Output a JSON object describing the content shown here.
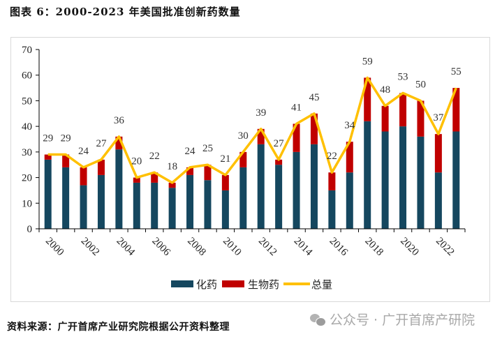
{
  "header": {
    "title": "图表 6：2000-2023 年美国批准创新药数量"
  },
  "footer": {
    "source": "资料来源：广开首席产业研究院根据公开资料整理",
    "watermark": "公众号 · 广开首席产研院",
    "watermark_icon": "wechat-icon"
  },
  "chart_data": {
    "type": "bar",
    "stacked": true,
    "title": "2000-2023 年美国批准创新药数量",
    "xlabel": "",
    "ylabel": "",
    "ylim": [
      0,
      70
    ],
    "yticks": [
      0,
      10,
      20,
      30,
      40,
      50,
      60,
      70
    ],
    "grid": false,
    "legend_position": "bottom",
    "categories": [
      "2000",
      "2001",
      "2002",
      "2003",
      "2004",
      "2005",
      "2006",
      "2007",
      "2008",
      "2009",
      "2010",
      "2011",
      "2012",
      "2013",
      "2014",
      "2015",
      "2016",
      "2017",
      "2018",
      "2019",
      "2020",
      "2021",
      "2022",
      "2023"
    ],
    "xtick_labels": [
      "2000",
      "2002",
      "2004",
      "2006",
      "2008",
      "2010",
      "2012",
      "2014",
      "2016",
      "2018",
      "2020",
      "2022"
    ],
    "series": [
      {
        "name": "化药",
        "type": "bar",
        "color": "#15475F",
        "values": [
          27,
          24,
          17,
          21,
          31,
          18,
          18,
          16,
          21,
          19,
          15,
          24,
          33,
          25,
          30,
          33,
          15,
          22,
          42,
          38,
          40,
          36,
          22,
          38
        ]
      },
      {
        "name": "生物药",
        "type": "bar",
        "color": "#C00000",
        "values": [
          2,
          5,
          7,
          6,
          5,
          2,
          4,
          2,
          3,
          6,
          6,
          6,
          6,
          2,
          11,
          12,
          7,
          12,
          17,
          10,
          13,
          14,
          15,
          17
        ]
      },
      {
        "name": "总量",
        "type": "line",
        "color": "#FFC000",
        "values": [
          29,
          29,
          24,
          27,
          36,
          20,
          22,
          18,
          24,
          25,
          21,
          30,
          39,
          27,
          41,
          45,
          22,
          34,
          59,
          48,
          53,
          50,
          37,
          55
        ]
      }
    ]
  }
}
